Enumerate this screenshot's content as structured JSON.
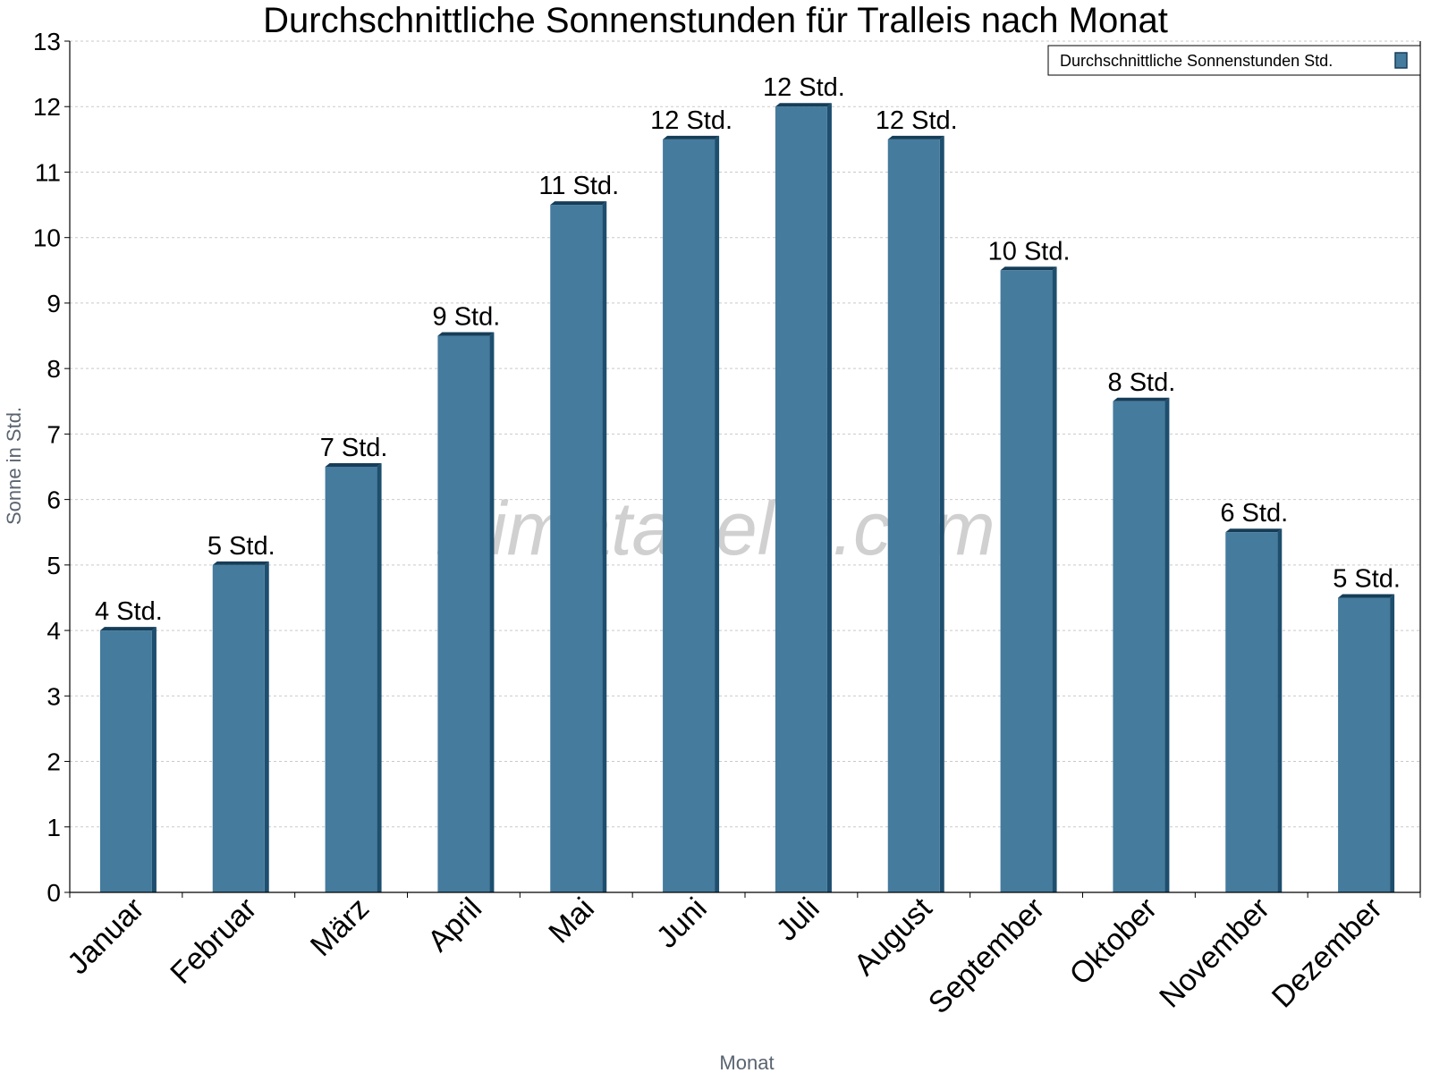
{
  "watermark": "klimatabelle.com",
  "legend": {
    "label": "Durchschnittliche Sonnenstunden Std."
  },
  "colors": {
    "bar": "#457b9d",
    "bar_dark": "#1d4e6e",
    "bar_edge": "#163d58",
    "grid": "#c9c9c9"
  },
  "chart_data": {
    "type": "bar",
    "title": "Durchschnittliche Sonnenstunden für Tralleis nach Monat",
    "xlabel": "Monat",
    "ylabel": "Sonne in Std.",
    "ylim": [
      0,
      13
    ],
    "yticks": [
      0,
      1,
      2,
      3,
      4,
      5,
      6,
      7,
      8,
      9,
      10,
      11,
      12,
      13
    ],
    "grid": true,
    "legend_position": "top-right",
    "categories": [
      "Januar",
      "Februar",
      "März",
      "April",
      "Mai",
      "Juni",
      "Juli",
      "August",
      "September",
      "Oktober",
      "November",
      "Dezember"
    ],
    "series": [
      {
        "name": "Durchschnittliche Sonnenstunden Std.",
        "values": [
          4,
          5,
          6.5,
          8.5,
          10.5,
          11.5,
          12,
          11.5,
          9.5,
          7.5,
          5.5,
          4.5
        ],
        "labels": [
          "4 Std.",
          "5 Std.",
          "7 Std.",
          "9 Std.",
          "11 Std.",
          "12 Std.",
          "12 Std.",
          "12 Std.",
          "10 Std.",
          "8 Std.",
          "6 Std.",
          "5 Std."
        ]
      }
    ]
  }
}
